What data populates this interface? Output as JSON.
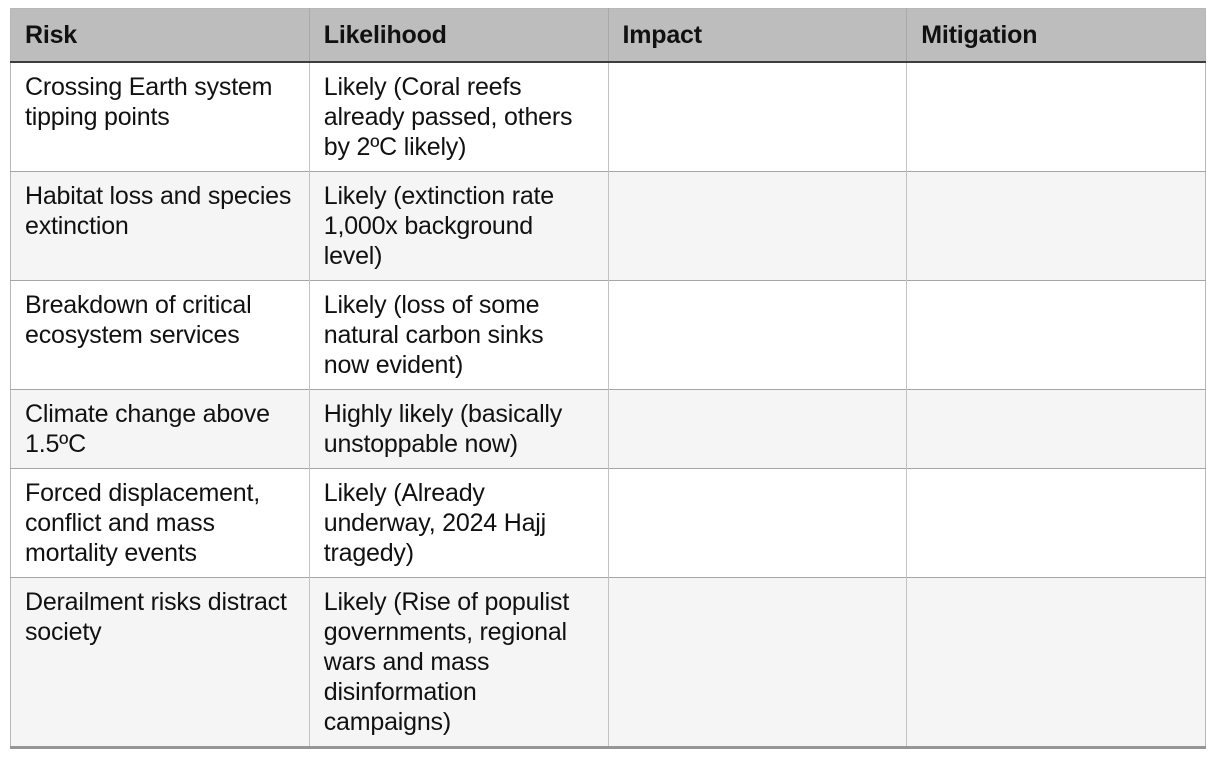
{
  "table": {
    "columns": [
      {
        "key": "risk",
        "label": "Risk"
      },
      {
        "key": "likelihood",
        "label": "Likelihood"
      },
      {
        "key": "impact",
        "label": "Impact"
      },
      {
        "key": "mitigation",
        "label": "Mitigation"
      }
    ],
    "rows": [
      {
        "risk": "Crossing Earth system tipping points",
        "likelihood": "Likely (Coral reefs already passed, others by 2ºC likely)",
        "impact": "",
        "mitigation": ""
      },
      {
        "risk": "Habitat loss and species extinction",
        "likelihood": "Likely (extinction rate 1,000x background level)",
        "impact": "",
        "mitigation": ""
      },
      {
        "risk": "Breakdown of critical ecosystem services",
        "likelihood": "Likely (loss of some natural carbon sinks now evident)",
        "impact": "",
        "mitigation": ""
      },
      {
        "risk": "Climate change above 1.5ºC",
        "likelihood": "Highly likely (basically unstoppable now)",
        "impact": "",
        "mitigation": ""
      },
      {
        "risk": "Forced displacement, conflict and mass mortality events",
        "likelihood": "Likely (Already underway, 2024 Hajj tragedy)",
        "impact": "",
        "mitigation": ""
      },
      {
        "risk": "Derailment risks distract society",
        "likelihood": "Likely (Rise of populist governments, regional wars and mass disinformation campaigns)",
        "impact": "",
        "mitigation": ""
      }
    ]
  },
  "colors": {
    "header_bg": "#bdbdbd",
    "row_bg": "#ffffff",
    "row_alt_bg": "#f5f5f5",
    "grid_border": "#c2c2c2",
    "row_separator": "#a6a6a6",
    "header_underline": "#3d3d3d",
    "table_bottom_border": "#969696",
    "text": "#111111"
  }
}
